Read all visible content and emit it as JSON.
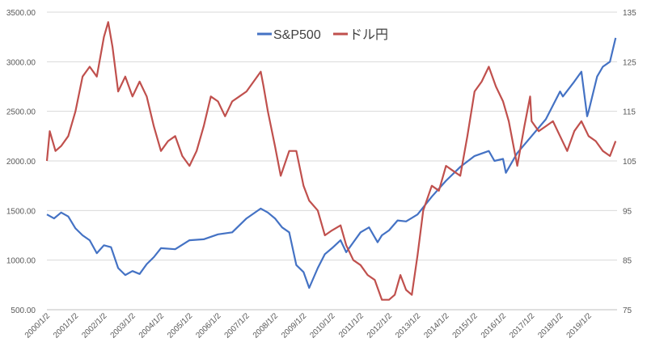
{
  "chart_data": {
    "type": "line",
    "title": "",
    "legend": {
      "position": "top",
      "entries": [
        "S&P500",
        "ドル円"
      ]
    },
    "grid": true,
    "x_labels": [
      "2000/1/2",
      "2001/1/2",
      "2002/1/2",
      "2003/1/2",
      "2004/1/2",
      "2005/1/2",
      "2006/1/2",
      "2007/1/2",
      "2008/1/2",
      "2009/1/2",
      "2010/1/2",
      "2011/1/2",
      "2012/1/2",
      "2013/1/2",
      "2014/1/2",
      "2015/1/2",
      "2016/1/2",
      "2017/1/2",
      "2018/1/2",
      "2019/1/2"
    ],
    "y_left": {
      "min": 500,
      "max": 3500,
      "step": 500,
      "tick_labels": [
        "500.00",
        "1000.00",
        "1500.00",
        "2000.00",
        "2500.00",
        "3000.00",
        "3500.00"
      ]
    },
    "y_right": {
      "min": 75,
      "max": 135,
      "step": 10,
      "tick_labels": [
        "75",
        "85",
        "95",
        "105",
        "115",
        "125",
        "135"
      ]
    },
    "series": [
      {
        "name": "S&P500",
        "axis": "left",
        "color": "#4472c4",
        "x": [
          2000,
          2000.25,
          2000.5,
          2000.75,
          2001,
          2001.25,
          2001.5,
          2001.75,
          2002,
          2002.25,
          2002.5,
          2002.75,
          2003,
          2003.25,
          2003.5,
          2003.75,
          2004,
          2004.5,
          2005,
          2005.5,
          2006,
          2006.5,
          2007,
          2007.5,
          2007.75,
          2008,
          2008.25,
          2008.5,
          2008.75,
          2009,
          2009.2,
          2009.5,
          2009.75,
          2010,
          2010.3,
          2010.5,
          2010.75,
          2011,
          2011.3,
          2011.6,
          2011.75,
          2012,
          2012.3,
          2012.6,
          2013,
          2013.5,
          2014,
          2014.5,
          2015,
          2015.5,
          2015.7,
          2016,
          2016.1,
          2016.5,
          2017,
          2017.5,
          2018,
          2018.1,
          2018.5,
          2018.75,
          2018.95,
          2019,
          2019.3,
          2019.5,
          2019.75,
          2019.95
        ],
        "values": [
          1460,
          1420,
          1480,
          1440,
          1320,
          1250,
          1200,
          1070,
          1150,
          1130,
          920,
          850,
          890,
          860,
          960,
          1030,
          1120,
          1110,
          1200,
          1210,
          1260,
          1280,
          1420,
          1520,
          1480,
          1420,
          1330,
          1280,
          950,
          880,
          720,
          920,
          1060,
          1120,
          1200,
          1080,
          1180,
          1280,
          1330,
          1180,
          1250,
          1300,
          1400,
          1390,
          1460,
          1640,
          1800,
          1940,
          2050,
          2100,
          2000,
          2020,
          1880,
          2080,
          2250,
          2420,
          2700,
          2650,
          2800,
          2900,
          2450,
          2500,
          2850,
          2950,
          3000,
          3240
        ]
      },
      {
        "name": "ドル円",
        "axis": "right",
        "color": "#c0504d",
        "x": [
          2000,
          2000.1,
          2000.3,
          2000.5,
          2000.75,
          2001,
          2001.25,
          2001.5,
          2001.75,
          2002,
          2002.15,
          2002.3,
          2002.5,
          2002.75,
          2003,
          2003.25,
          2003.5,
          2003.75,
          2004,
          2004.25,
          2004.5,
          2004.75,
          2005,
          2005.25,
          2005.5,
          2005.75,
          2006,
          2006.25,
          2006.5,
          2006.75,
          2007,
          2007.25,
          2007.5,
          2007.6,
          2007.75,
          2008,
          2008.2,
          2008.5,
          2008.75,
          2009,
          2009.2,
          2009.5,
          2009.75,
          2010,
          2010.3,
          2010.5,
          2010.75,
          2011,
          2011.25,
          2011.5,
          2011.75,
          2012,
          2012.2,
          2012.4,
          2012.6,
          2012.8,
          2013,
          2013.2,
          2013.5,
          2013.75,
          2014,
          2014.25,
          2014.5,
          2014.75,
          2015,
          2015.25,
          2015.5,
          2015.75,
          2016,
          2016.2,
          2016.5,
          2016.75,
          2016.95,
          2017,
          2017.25,
          2017.5,
          2017.75,
          2018,
          2018.25,
          2018.5,
          2018.75,
          2019,
          2019.25,
          2019.5,
          2019.75,
          2019.95
        ],
        "values": [
          105,
          111,
          107,
          108,
          110,
          115,
          122,
          124,
          122,
          130,
          133,
          128,
          119,
          122,
          118,
          121,
          118,
          112,
          107,
          109,
          110,
          106,
          104,
          107,
          112,
          118,
          117,
          114,
          117,
          118,
          119,
          121,
          123,
          120,
          115,
          108,
          102,
          107,
          107,
          100,
          97,
          95,
          90,
          91,
          92,
          88,
          85,
          84,
          82,
          81,
          77,
          77,
          78,
          82,
          79,
          78,
          86,
          95,
          100,
          99,
          104,
          103,
          102,
          110,
          119,
          121,
          124,
          120,
          117,
          113,
          104,
          112,
          118,
          113,
          111,
          112,
          113,
          110,
          107,
          111,
          113,
          110,
          109,
          107,
          106,
          109
        ]
      }
    ]
  }
}
